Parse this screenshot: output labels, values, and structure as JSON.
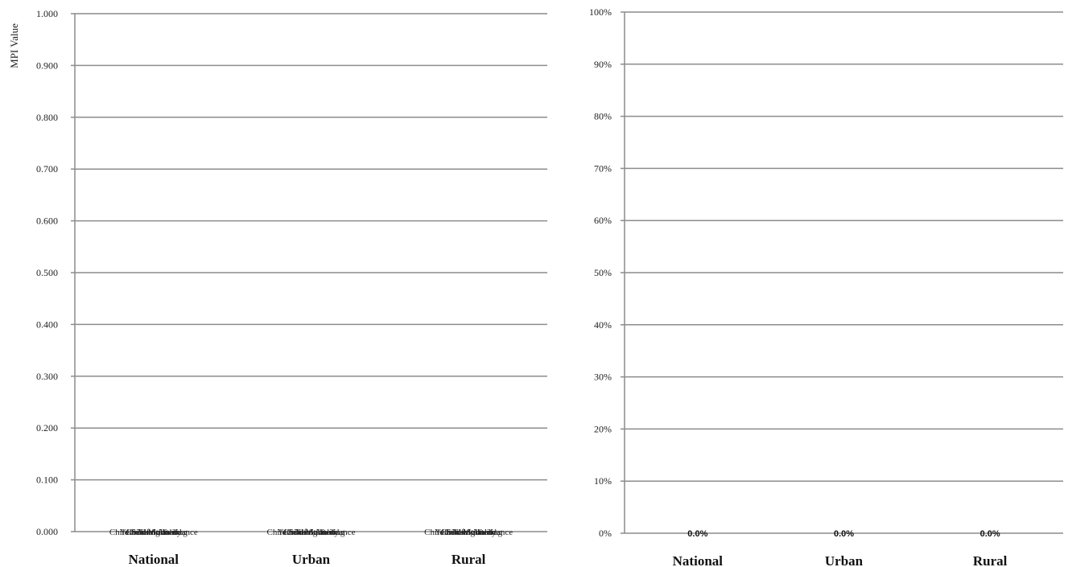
{
  "chart_data": [
    {
      "type": "bar",
      "ylabel": "MPI Value",
      "categories": [
        "National",
        "Urban",
        "Rural"
      ],
      "ylim": [
        0,
        1
      ],
      "yticks": [
        "0.000",
        "0.100",
        "0.200",
        "0.300",
        "0.400",
        "0.500",
        "0.600",
        "0.700",
        "0.800",
        "0.900",
        "1.000"
      ],
      "grid": true,
      "data_labels": [
        "Child Mortality",
        "Nutrition",
        "Years of Schooling",
        "Child School Attendance",
        "Cooking Fuel"
      ],
      "series": [
        {
          "values": [
            0,
            0,
            0
          ]
        }
      ]
    },
    {
      "type": "bar",
      "categories": [
        "National",
        "Urban",
        "Rural"
      ],
      "ylim": [
        0,
        100
      ],
      "yticks": [
        "0%",
        "10%",
        "20%",
        "30%",
        "40%",
        "50%",
        "60%",
        "70%",
        "80%",
        "90%",
        "100%"
      ],
      "grid": true,
      "data_labels": [
        "0.0%",
        "0.0%",
        "0.0%"
      ],
      "series": [
        {
          "values": [
            0,
            0,
            0
          ]
        }
      ]
    }
  ]
}
